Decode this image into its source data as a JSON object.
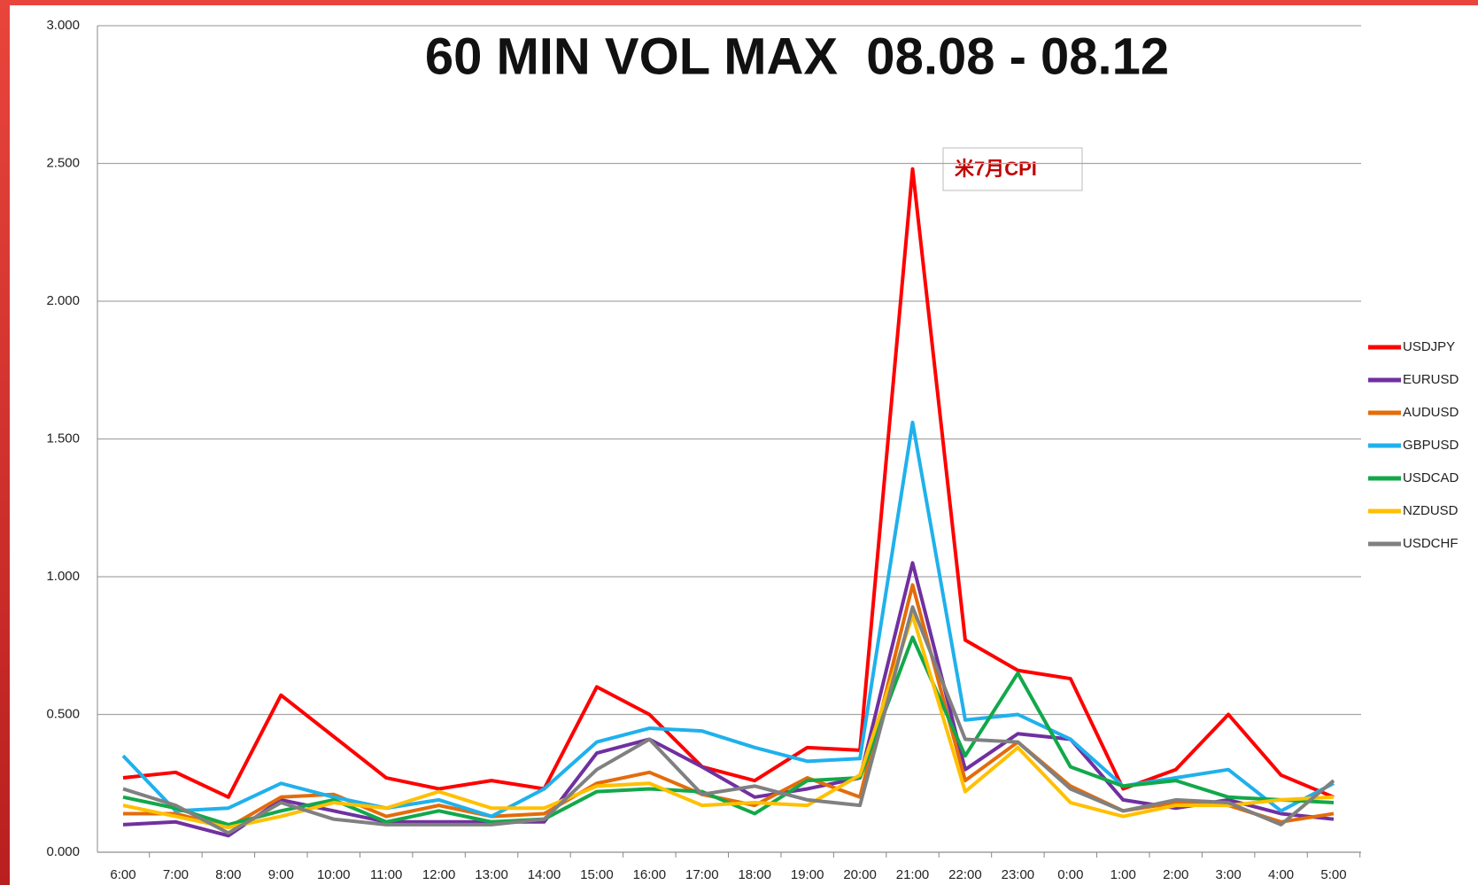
{
  "chart_data": {
    "type": "line",
    "title": "60 MIN VOL MAX  08.08 - 08.12",
    "annotation": "米7月CPI",
    "categories": [
      "6:00",
      "7:00",
      "8:00",
      "9:00",
      "10:00",
      "11:00",
      "12:00",
      "13:00",
      "14:00",
      "15:00",
      "16:00",
      "17:00",
      "18:00",
      "19:00",
      "20:00",
      "21:00",
      "22:00",
      "23:00",
      "0:00",
      "1:00",
      "2:00",
      "3:00",
      "4:00",
      "5:00"
    ],
    "ylim": [
      0,
      3
    ],
    "yticks": [
      {
        "value": 0,
        "label": "0.000"
      },
      {
        "value": 0.5,
        "label": "0.500"
      },
      {
        "value": 1,
        "label": "1.000"
      },
      {
        "value": 1.5,
        "label": "1.500"
      },
      {
        "value": 2,
        "label": "2.000"
      },
      {
        "value": 2.5,
        "label": "2.500"
      },
      {
        "value": 3,
        "label": "3.000"
      }
    ],
    "grid": true,
    "legend": "right",
    "series": [
      {
        "name": "USDJPY",
        "color": "#ff0000",
        "values": [
          0.27,
          0.29,
          0.2,
          0.57,
          0.42,
          0.27,
          0.23,
          0.26,
          0.23,
          0.6,
          0.5,
          0.31,
          0.26,
          0.38,
          0.37,
          2.48,
          0.77,
          0.66,
          0.63,
          0.23,
          0.3,
          0.5,
          0.28,
          0.2
        ]
      },
      {
        "name": "EURUSD",
        "color": "#7030a0",
        "values": [
          0.1,
          0.11,
          0.06,
          0.19,
          0.15,
          0.11,
          0.11,
          0.11,
          0.11,
          0.36,
          0.41,
          0.31,
          0.2,
          0.23,
          0.27,
          1.05,
          0.3,
          0.43,
          0.41,
          0.19,
          0.16,
          0.19,
          0.14,
          0.12
        ]
      },
      {
        "name": "AUDUSD",
        "color": "#e46c0a",
        "values": [
          0.14,
          0.14,
          0.09,
          0.2,
          0.21,
          0.13,
          0.17,
          0.13,
          0.14,
          0.25,
          0.29,
          0.21,
          0.17,
          0.27,
          0.2,
          0.97,
          0.26,
          0.4,
          0.24,
          0.15,
          0.18,
          0.17,
          0.11,
          0.14
        ]
      },
      {
        "name": "GBPUSD",
        "color": "#1fb1ec",
        "values": [
          0.35,
          0.15,
          0.16,
          0.25,
          0.2,
          0.16,
          0.19,
          0.13,
          0.23,
          0.4,
          0.45,
          0.44,
          0.38,
          0.33,
          0.34,
          1.56,
          0.48,
          0.5,
          0.41,
          0.24,
          0.27,
          0.3,
          0.15,
          0.25
        ]
      },
      {
        "name": "USDCAD",
        "color": "#12a84a",
        "values": [
          0.2,
          0.16,
          0.1,
          0.15,
          0.19,
          0.11,
          0.15,
          0.11,
          0.12,
          0.22,
          0.23,
          0.22,
          0.14,
          0.26,
          0.27,
          0.78,
          0.35,
          0.65,
          0.31,
          0.24,
          0.26,
          0.2,
          0.19,
          0.18
        ]
      },
      {
        "name": "NZDUSD",
        "color": "#ffc000",
        "values": [
          0.17,
          0.13,
          0.09,
          0.13,
          0.18,
          0.16,
          0.22,
          0.16,
          0.16,
          0.24,
          0.25,
          0.17,
          0.18,
          0.17,
          0.28,
          0.86,
          0.22,
          0.38,
          0.18,
          0.13,
          0.17,
          0.17,
          0.19,
          0.2
        ]
      },
      {
        "name": "USDCHF",
        "color": "#808080",
        "values": [
          0.23,
          0.17,
          0.07,
          0.18,
          0.12,
          0.1,
          0.1,
          0.1,
          0.12,
          0.3,
          0.41,
          0.21,
          0.24,
          0.19,
          0.17,
          0.89,
          0.41,
          0.4,
          0.23,
          0.15,
          0.19,
          0.18,
          0.1,
          0.26
        ]
      }
    ]
  }
}
